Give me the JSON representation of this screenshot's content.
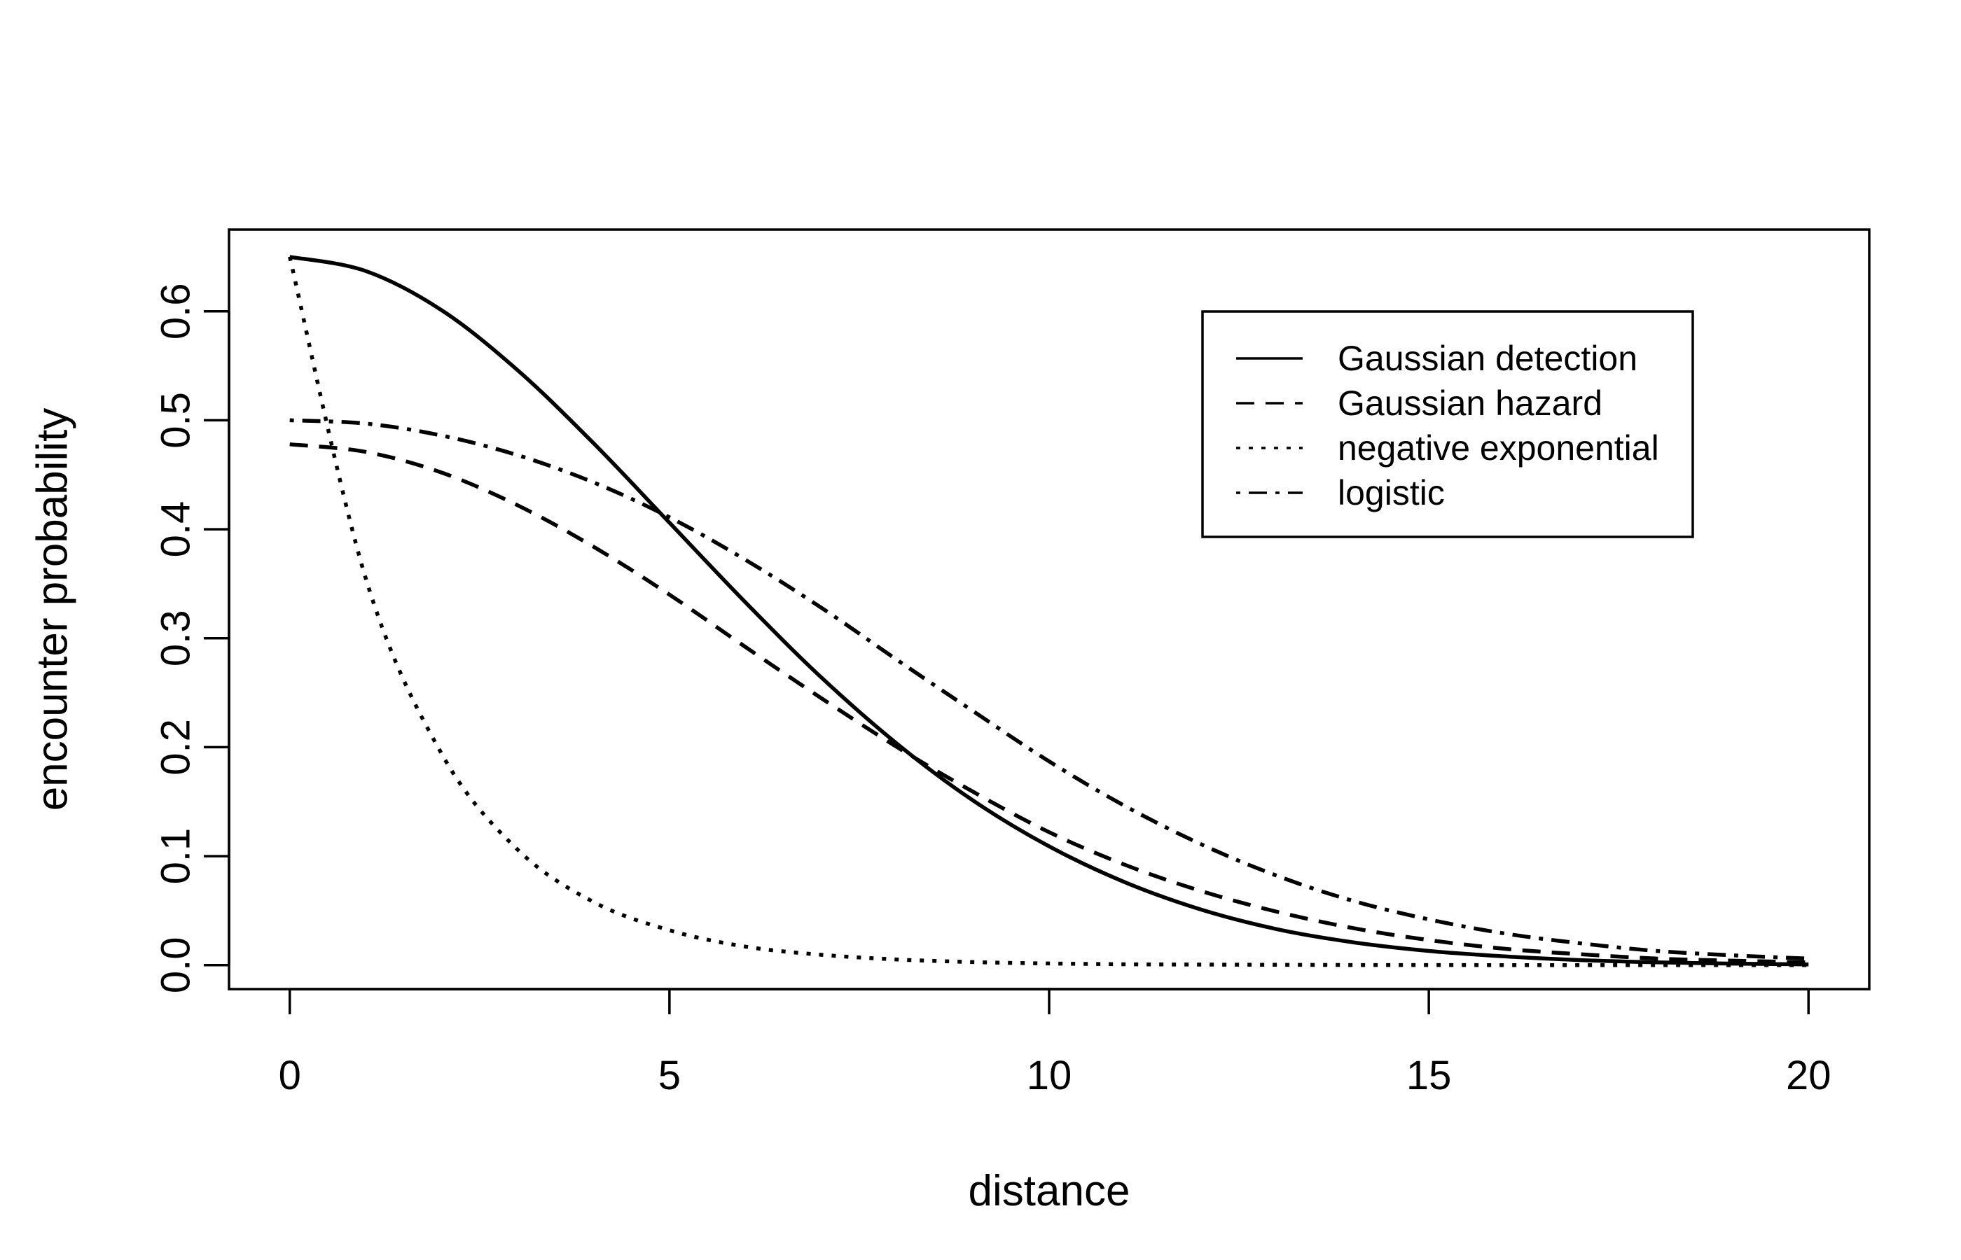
{
  "chart_data": {
    "type": "line",
    "title": "",
    "xlabel": "distance",
    "ylabel": "encounter probability",
    "xlim": [
      -0.8,
      20.8
    ],
    "ylim": [
      -0.022,
      0.675
    ],
    "xticks": [
      0,
      5,
      10,
      15,
      20
    ],
    "xtick_labels": [
      "0",
      "5",
      "10",
      "15",
      "20"
    ],
    "yticks": [
      0.0,
      0.1,
      0.2,
      0.3,
      0.4,
      0.5,
      0.6
    ],
    "ytick_labels": [
      "0.0",
      "0.1",
      "0.2",
      "0.3",
      "0.4",
      "0.5",
      "0.6"
    ],
    "grid": false,
    "legend_position": "top-right",
    "x": [
      0,
      1,
      2,
      3,
      4,
      5,
      6,
      7,
      8,
      9,
      10,
      11,
      12,
      13,
      14,
      15,
      16,
      17,
      18,
      19,
      20
    ],
    "series": [
      {
        "name": "Gaussian detection",
        "line_style": "solid",
        "values": [
          0.65,
          0.637,
          0.601,
          0.546,
          0.479,
          0.406,
          0.333,
          0.264,
          0.203,
          0.151,
          0.109,
          0.076,
          0.051,
          0.033,
          0.021,
          0.013,
          0.008,
          0.0046,
          0.0026,
          0.0014,
          0.0007
        ]
      },
      {
        "name": "Gaussian hazard",
        "line_style": "dashed",
        "values": [
          0.478,
          0.471,
          0.452,
          0.422,
          0.384,
          0.34,
          0.292,
          0.245,
          0.2,
          0.159,
          0.122,
          0.092,
          0.068,
          0.049,
          0.034,
          0.023,
          0.015,
          0.01,
          0.006,
          0.0041,
          0.0026
        ]
      },
      {
        "name": "negative exponential",
        "line_style": "dotted",
        "values": [
          0.65,
          0.355,
          0.194,
          0.106,
          0.058,
          0.032,
          0.017,
          0.0095,
          0.0052,
          0.0028,
          0.0015,
          0.0008,
          0.0005,
          0.0003,
          0.0001,
          0.0001,
          0.0,
          0.0,
          0.0,
          0.0,
          0.0
        ]
      },
      {
        "name": "logistic",
        "line_style": "dotdash",
        "values": [
          0.5,
          0.497,
          0.486,
          0.468,
          0.443,
          0.411,
          0.372,
          0.328,
          0.28,
          0.233,
          0.187,
          0.146,
          0.111,
          0.082,
          0.059,
          0.042,
          0.029,
          0.02,
          0.013,
          0.009,
          0.006
        ]
      }
    ]
  }
}
